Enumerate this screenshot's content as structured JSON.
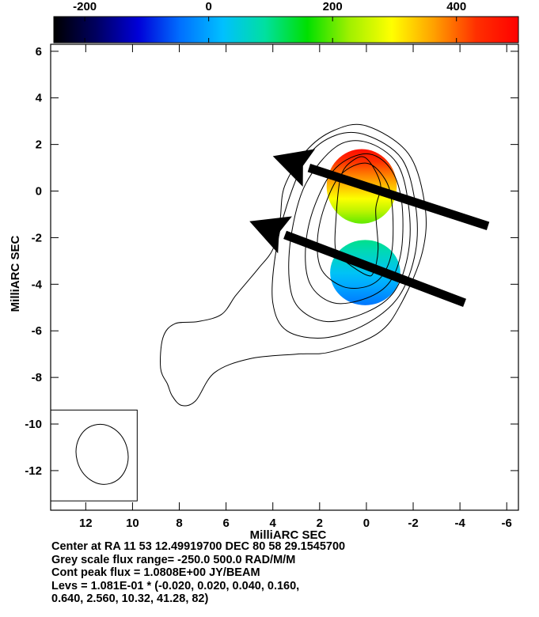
{
  "chart_data": {
    "type": "heatmap",
    "xlabel": "MilliARC SEC",
    "ylabel": "MilliARC SEC",
    "xlim": [
      13.5,
      -6.5
    ],
    "ylim": [
      -13.7,
      6.3
    ],
    "x_ticks": [
      12,
      10,
      8,
      6,
      4,
      2,
      0,
      -2,
      -4,
      -6
    ],
    "y_ticks": [
      6,
      4,
      2,
      0,
      -2,
      -4,
      -6,
      -8,
      -10,
      -12
    ],
    "colorbar": {
      "range": [
        -250,
        500
      ],
      "ticks": [
        -200,
        0,
        200,
        400
      ],
      "colors": [
        "#000000",
        "#000060",
        "#0000d8",
        "#0070ff",
        "#00c0ff",
        "#00e0a0",
        "#00e000",
        "#a0f000",
        "#ffff00",
        "#ffa000",
        "#ff3000",
        "#ff0000"
      ]
    },
    "contours": [
      [
        [
          0.0,
          2.8
        ],
        [
          -1.8,
          1.6
        ],
        [
          -2.5,
          -0.6
        ],
        [
          -2.4,
          -2.6
        ],
        [
          -1.5,
          -4.8
        ],
        [
          -0.5,
          -6.1
        ],
        [
          1.5,
          -6.9
        ],
        [
          3.0,
          -7.0
        ],
        [
          5.0,
          -7.2
        ],
        [
          6.5,
          -7.8
        ],
        [
          7.3,
          -9.0
        ],
        [
          7.9,
          -9.2
        ],
        [
          8.3,
          -8.8
        ],
        [
          8.5,
          -8.3
        ],
        [
          8.8,
          -7.6
        ],
        [
          8.7,
          -6.3
        ],
        [
          8.2,
          -5.7
        ],
        [
          7.2,
          -5.6
        ],
        [
          6.2,
          -5.3
        ],
        [
          5.6,
          -4.5
        ],
        [
          5.1,
          -3.9
        ],
        [
          4.6,
          -3.3
        ],
        [
          4.0,
          -2.5
        ],
        [
          3.7,
          -1.3
        ],
        [
          3.5,
          0.2
        ],
        [
          2.6,
          1.7
        ],
        [
          1.4,
          2.6
        ]
      ],
      [
        [
          0.0,
          2.4
        ],
        [
          -1.5,
          1.4
        ],
        [
          -2.1,
          -0.6
        ],
        [
          -2.1,
          -2.6
        ],
        [
          -1.4,
          -4.5
        ],
        [
          0.0,
          -5.7
        ],
        [
          1.8,
          -6.3
        ],
        [
          3.4,
          -6.0
        ],
        [
          4.0,
          -4.8
        ],
        [
          3.9,
          -2.8
        ],
        [
          3.4,
          -0.6
        ],
        [
          2.5,
          1.5
        ],
        [
          1.3,
          2.4
        ]
      ],
      [
        [
          0.0,
          2.1
        ],
        [
          -1.3,
          1.2
        ],
        [
          -1.8,
          -0.6
        ],
        [
          -1.8,
          -2.6
        ],
        [
          -1.2,
          -4.3
        ],
        [
          0.0,
          -5.2
        ],
        [
          1.7,
          -5.6
        ],
        [
          2.9,
          -5.0
        ],
        [
          3.3,
          -3.8
        ],
        [
          3.2,
          -1.8
        ],
        [
          2.6,
          0.3
        ],
        [
          1.3,
          1.9
        ]
      ],
      [
        [
          0.0,
          1.6
        ],
        [
          -1.0,
          1.0
        ],
        [
          -1.5,
          -0.4
        ],
        [
          -1.5,
          -2.5
        ],
        [
          -1.0,
          -3.9
        ],
        [
          0.0,
          -4.6
        ],
        [
          1.4,
          -4.8
        ],
        [
          2.4,
          -4.0
        ],
        [
          2.6,
          -2.4
        ],
        [
          2.2,
          -0.6
        ],
        [
          1.3,
          1.0
        ]
      ],
      [
        [
          0.0,
          1.2
        ],
        [
          -0.8,
          0.5
        ],
        [
          -1.1,
          -0.6
        ],
        [
          -1.1,
          -2.5
        ],
        [
          -0.7,
          -3.6
        ],
        [
          0.0,
          -4.1
        ],
        [
          1.0,
          -4.1
        ],
        [
          1.9,
          -3.4
        ],
        [
          2.1,
          -2.2
        ],
        [
          1.8,
          -0.7
        ],
        [
          1.1,
          0.7
        ]
      ],
      [
        [
          0.0,
          1.4
        ],
        [
          -0.6,
          0.3
        ],
        [
          -0.4,
          -0.8
        ],
        [
          -0.5,
          -2.5
        ],
        [
          -0.3,
          -3.5
        ],
        [
          0.0,
          -3.6
        ],
        [
          0.8,
          -3.1
        ],
        [
          1.3,
          -2.6
        ],
        [
          1.3,
          -1.2
        ],
        [
          1.1,
          0.6
        ],
        [
          0.6,
          1.3
        ]
      ]
    ],
    "rm_blobs": [
      {
        "center": [
          0.2,
          0.2
        ],
        "rx": 1.5,
        "ry": 1.6,
        "rm_top": 480,
        "rm_bottom": 200
      },
      {
        "center": [
          0.05,
          -3.5
        ],
        "rx": 1.5,
        "ry": 1.4,
        "rm_top": 100,
        "rm_bottom": -40
      }
    ],
    "arrows": [
      {
        "from": [
          -5.2,
          -1.5
        ],
        "to": [
          4.0,
          1.5
        ]
      },
      {
        "from": [
          -4.2,
          -4.8
        ],
        "to": [
          5.0,
          -1.3
        ]
      }
    ],
    "beam": {
      "center": [
        11.3,
        -11.3
      ],
      "rx": 1.1,
      "ry": 1.3,
      "box": [
        13.5,
        9.8,
        -9.4,
        -13.3
      ]
    },
    "notes": [
      "Center at RA 11 53 12.49919700  DEC 80 58 29.1545700",
      "Grey scale flux range= -250.0 500.0 RAD/M/M",
      "Cont peak flux =  1.0808E+00 JY/BEAM",
      "Levs = 1.081E-01 * (-0.020, 0.020, 0.040, 0.160,",
      "0.640, 2.560, 10.32, 41.28, 82)"
    ]
  }
}
